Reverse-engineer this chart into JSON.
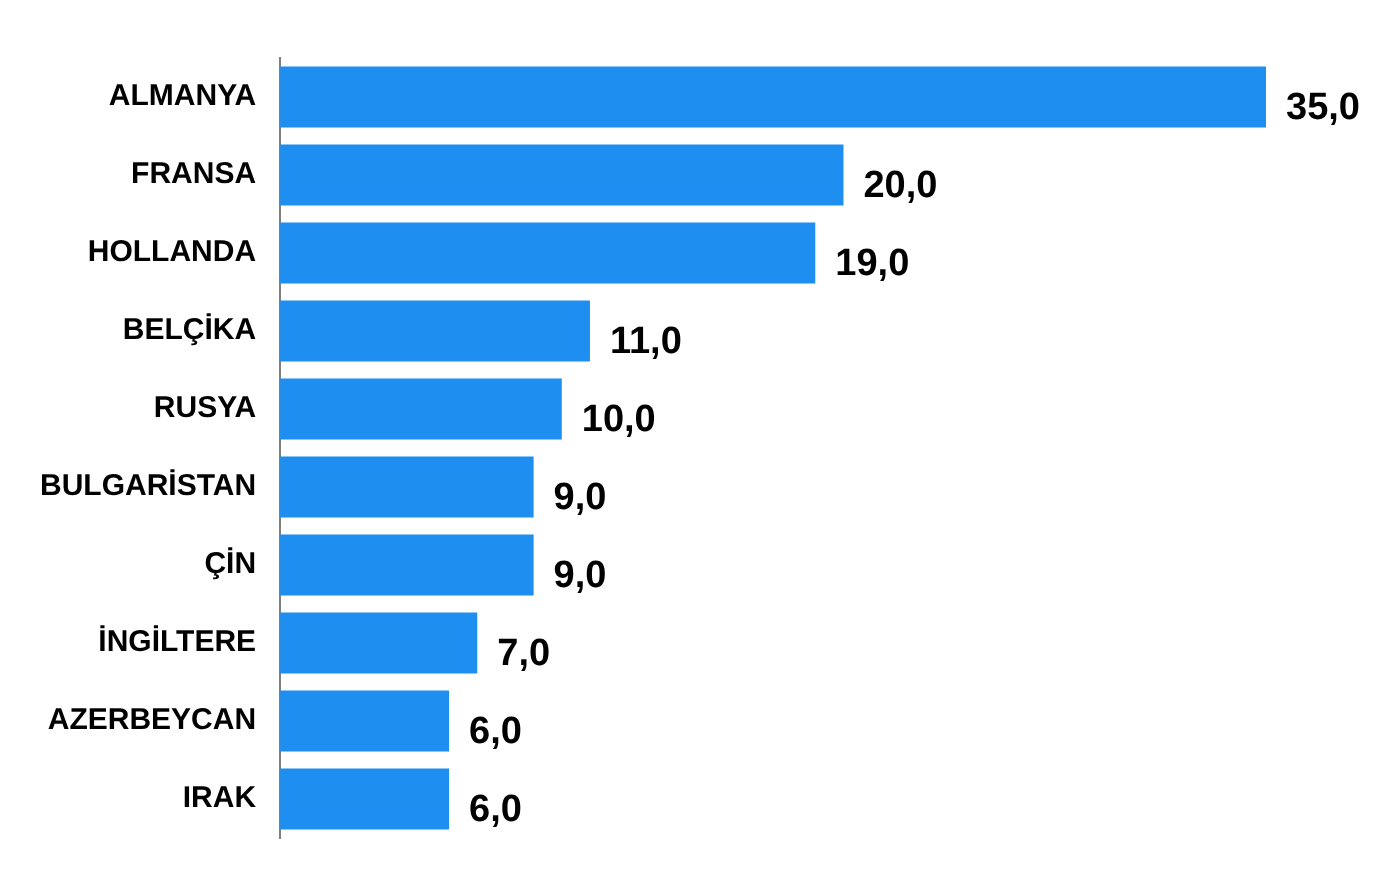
{
  "chart_data": {
    "type": "bar",
    "orientation": "horizontal",
    "categories": [
      "ALMANYA",
      "FRANSA",
      "HOLLANDA",
      "BELÇİKA",
      "RUSYA",
      "BULGARİSTAN",
      "ÇİN",
      "İNGİLTERE",
      "AZERBEYCAN",
      "IRAK"
    ],
    "values": [
      35,
      20,
      19,
      11,
      10,
      9,
      9,
      7,
      6,
      6
    ],
    "value_labels": [
      "35,0",
      "20,0",
      "19,0",
      "11,0",
      "10,0",
      "9,0",
      "9,0",
      "7,0",
      "6,0",
      "6,0"
    ],
    "color": "#1e8ff0",
    "xlim": [
      0,
      35
    ],
    "tick_labels": "y",
    "grid": false,
    "legend": false
  }
}
